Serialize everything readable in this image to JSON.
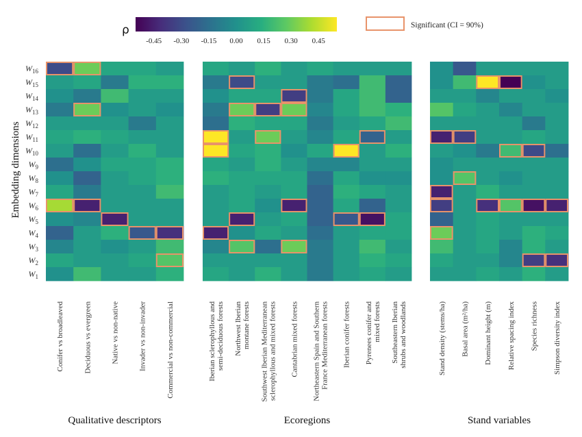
{
  "chart_data": {
    "type": "heatmap",
    "colorbar": {
      "symbol": "ρ",
      "ticks": [
        "-0.45",
        "-0.30",
        "-0.15",
        "0.00",
        "0.15",
        "0.30",
        "0.45"
      ],
      "tick_values": [
        -0.45,
        -0.3,
        -0.15,
        0.0,
        0.15,
        0.3,
        0.45
      ],
      "range": [
        -0.55,
        0.55
      ]
    },
    "legend": {
      "label": "Significant (CI = 90%)",
      "color": "#e8936a",
      "placement": "top-right"
    },
    "ylabel": "Embedding dimensions",
    "rows": [
      "16",
      "15",
      "14",
      "13",
      "12",
      "11",
      "10",
      "9",
      "8",
      "7",
      "6",
      "5",
      "4",
      "3",
      "2",
      "1"
    ],
    "row_letter": "W",
    "panels": [
      {
        "title": "Qualitative descriptors",
        "columns": [
          [
            "Conifer vs broadleaved"
          ],
          [
            "Deciduous vs evergreen"
          ],
          [
            "Native vs non-native"
          ],
          [
            "Invader vs non-invader"
          ],
          [
            "Commercial vs non-commercial"
          ]
        ],
        "values": [
          [
            -0.3,
            0.3,
            0.1,
            0.1,
            0.05
          ],
          [
            0.05,
            0.1,
            -0.1,
            0.15,
            0.15
          ],
          [
            0.0,
            -0.1,
            0.2,
            0.05,
            0.05
          ],
          [
            -0.1,
            0.3,
            0.0,
            0.05,
            0.0
          ],
          [
            0.05,
            0.05,
            0.05,
            -0.1,
            0.05
          ],
          [
            0.1,
            0.15,
            0.1,
            0.05,
            0.05
          ],
          [
            0.05,
            -0.15,
            0.05,
            0.15,
            0.05
          ],
          [
            -0.15,
            0.0,
            0.1,
            0.1,
            0.15
          ],
          [
            0.0,
            -0.2,
            0.05,
            0.1,
            0.15
          ],
          [
            0.1,
            -0.1,
            0.05,
            0.05,
            0.2
          ],
          [
            0.4,
            -0.45,
            0.05,
            0.05,
            0.05
          ],
          [
            0.0,
            -0.05,
            -0.45,
            0.05,
            0.05
          ],
          [
            -0.2,
            0.05,
            0.15,
            -0.25,
            -0.4
          ],
          [
            -0.05,
            0.05,
            0.0,
            0.05,
            0.2
          ],
          [
            0.1,
            0.05,
            0.05,
            0.1,
            0.25
          ],
          [
            0.0,
            0.2,
            0.05,
            0.05,
            0.15
          ]
        ],
        "significant": [
          [
            0,
            0
          ],
          [
            0,
            1
          ],
          [
            3,
            1
          ],
          [
            10,
            0
          ],
          [
            10,
            1
          ],
          [
            11,
            2
          ],
          [
            12,
            3
          ],
          [
            12,
            4
          ],
          [
            14,
            4
          ]
        ]
      },
      {
        "title": "Ecoregions",
        "columns": [
          [
            "Iberian sclerophyllous and",
            "semi-deciduous forests"
          ],
          [
            "Northwest Iberian",
            "montane forests"
          ],
          [
            "Southwest Iberian Mediterranean",
            "sclerophyllous and mixed forests"
          ],
          [
            "Cantabrian mixed forests"
          ],
          [
            "Northeastern Spain and Southern",
            "France Mediterranean forests"
          ],
          [
            "Iberian conifer forests"
          ],
          [
            "Pyrenees conifer and",
            "mixed forests"
          ],
          [
            "Southeastern Iberian",
            "shrubs and woodlands"
          ]
        ],
        "values": [
          [
            0.1,
            0.05,
            0.15,
            0.05,
            0.1,
            0.05,
            0.05,
            0.05
          ],
          [
            -0.1,
            -0.3,
            0.05,
            0.05,
            -0.1,
            -0.15,
            0.2,
            -0.2
          ],
          [
            0.0,
            0.1,
            0.1,
            -0.35,
            -0.1,
            0.1,
            0.2,
            -0.2
          ],
          [
            -0.1,
            0.3,
            -0.35,
            0.3,
            -0.05,
            0.1,
            0.2,
            0.15
          ],
          [
            -0.15,
            0.15,
            0.1,
            0.1,
            -0.1,
            0.05,
            0.1,
            0.2
          ],
          [
            0.55,
            0.05,
            0.3,
            0.05,
            -0.05,
            0.1,
            -0.2,
            0.05
          ],
          [
            0.55,
            0.1,
            0.15,
            0.0,
            0.1,
            0.55,
            0.05,
            0.15
          ],
          [
            0.1,
            0.05,
            0.15,
            0.05,
            -0.05,
            -0.05,
            0.05,
            0.05
          ],
          [
            0.15,
            0.1,
            0.1,
            0.1,
            -0.15,
            0.1,
            0.0,
            0.0
          ],
          [
            0.05,
            0.1,
            0.05,
            0.1,
            -0.2,
            0.15,
            0.1,
            0.05
          ],
          [
            0.05,
            0.1,
            0.0,
            -0.45,
            -0.2,
            0.1,
            -0.2,
            0.05
          ],
          [
            0.05,
            -0.45,
            0.05,
            0.1,
            -0.2,
            -0.25,
            -0.5,
            0.1
          ],
          [
            -0.45,
            0.0,
            0.1,
            0.05,
            -0.15,
            0.05,
            0.1,
            0.1
          ],
          [
            -0.05,
            0.25,
            -0.15,
            0.3,
            -0.1,
            0.05,
            0.2,
            0.05
          ],
          [
            0.05,
            0.05,
            0.05,
            0.05,
            -0.1,
            0.05,
            0.15,
            0.1
          ],
          [
            0.1,
            0.05,
            0.15,
            0.05,
            -0.1,
            0.05,
            0.1,
            0.05
          ]
        ],
        "significant": [
          [
            1,
            1
          ],
          [
            2,
            3
          ],
          [
            3,
            1
          ],
          [
            3,
            2
          ],
          [
            3,
            3
          ],
          [
            5,
            0
          ],
          [
            5,
            2
          ],
          [
            5,
            6
          ],
          [
            6,
            0
          ],
          [
            6,
            5
          ],
          [
            10,
            3
          ],
          [
            11,
            1
          ],
          [
            11,
            5
          ],
          [
            11,
            6
          ],
          [
            12,
            0
          ],
          [
            13,
            1
          ],
          [
            13,
            3
          ]
        ]
      },
      {
        "title": "Stand variables",
        "columns": [
          [
            "Stand density (stems/ha)"
          ],
          [
            "Basal area (m²/ha)"
          ],
          [
            "Dominant height (m)"
          ],
          [
            "Relative spacing index"
          ],
          [
            "Species richness"
          ],
          [
            "Simpson diversity index"
          ]
        ],
        "values": [
          [
            0.0,
            -0.25,
            0.05,
            0.05,
            0.05,
            0.05
          ],
          [
            0.0,
            0.2,
            0.55,
            -0.55,
            0.0,
            0.05
          ],
          [
            0.05,
            0.05,
            -0.05,
            0.05,
            0.05,
            0.0
          ],
          [
            0.25,
            0.1,
            0.05,
            -0.05,
            0.05,
            0.05
          ],
          [
            0.05,
            0.05,
            0.05,
            0.05,
            -0.1,
            0.05
          ],
          [
            -0.45,
            -0.35,
            0.05,
            0.05,
            0.1,
            0.05
          ],
          [
            0.05,
            0.0,
            -0.1,
            0.2,
            -0.3,
            -0.15
          ],
          [
            0.0,
            0.05,
            0.05,
            0.05,
            0.05,
            0.05
          ],
          [
            0.0,
            0.25,
            0.05,
            0.0,
            0.05,
            0.05
          ],
          [
            -0.45,
            0.05,
            0.15,
            0.05,
            0.05,
            0.05
          ],
          [
            -0.35,
            0.05,
            -0.4,
            0.25,
            -0.5,
            -0.45
          ],
          [
            -0.2,
            0.05,
            0.1,
            0.05,
            0.05,
            0.05
          ],
          [
            0.3,
            0.05,
            0.1,
            0.05,
            0.15,
            0.1
          ],
          [
            0.2,
            0.05,
            0.1,
            -0.05,
            0.15,
            0.05
          ],
          [
            0.1,
            0.05,
            0.05,
            -0.05,
            -0.35,
            -0.4
          ],
          [
            0.05,
            0.05,
            0.1,
            0.05,
            0.15,
            0.05
          ]
        ],
        "significant": [
          [
            1,
            2
          ],
          [
            1,
            3
          ],
          [
            5,
            0
          ],
          [
            5,
            1
          ],
          [
            6,
            3
          ],
          [
            6,
            4
          ],
          [
            8,
            1
          ],
          [
            9,
            0
          ],
          [
            10,
            0
          ],
          [
            10,
            2
          ],
          [
            10,
            3
          ],
          [
            10,
            4
          ],
          [
            10,
            5
          ],
          [
            12,
            0
          ],
          [
            14,
            4
          ],
          [
            14,
            5
          ]
        ]
      }
    ]
  }
}
